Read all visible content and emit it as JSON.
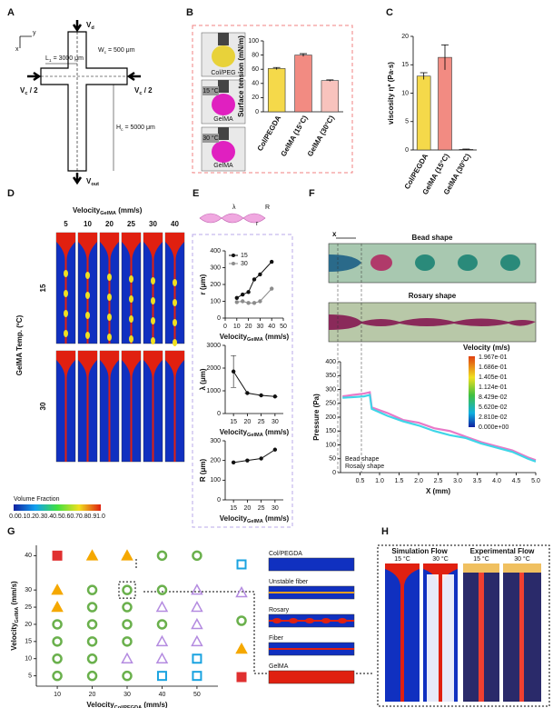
{
  "figure": {
    "panels": [
      "A",
      "B",
      "C",
      "D",
      "E",
      "F",
      "G",
      "H"
    ],
    "a": {
      "vd": [
        "V",
        "d"
      ],
      "vc_left": [
        "V",
        "c",
        " / 2"
      ],
      "vc_right": [
        "V",
        "c",
        " / 2"
      ],
      "wc": [
        "W",
        "c",
        " = 500 μm"
      ],
      "l1": [
        "L",
        "1",
        " = 3000 μm"
      ],
      "hc": [
        "H",
        "c",
        " = 5000 μm"
      ],
      "vout": [
        "V",
        "out"
      ],
      "x": "x",
      "y": "y"
    },
    "b": {
      "images": [
        "Col/PEG",
        "15 °C",
        "GelMA",
        "30 °C",
        "GelMA"
      ]
    },
    "d": {
      "title": [
        "Velocity",
        "GelMA",
        " (mm/s)"
      ],
      "columns": [
        "5",
        "10",
        "20",
        "25",
        "30",
        "40"
      ],
      "rows": [
        "15",
        "30"
      ],
      "row_title": "GelMA Temp. (ºC)",
      "colorbar_title": "Volume  Fraction",
      "colorbar_ticks": [
        "0.0",
        "0.1",
        "0.2",
        "0.3",
        "0.4",
        "0.5",
        "0.6",
        "0.7",
        "0.8",
        "0.9",
        "1.0"
      ]
    },
    "e": {
      "diagram": [
        "λ",
        "r",
        "R"
      ]
    },
    "f": {
      "x": "x",
      "bead": "Bead shape",
      "rosary": "Rosary shape",
      "colorbar_title": "Velocity  (m/s)",
      "colorbar_ticks": [
        "1.967e-01",
        "1.686e-01",
        "1.405e-01",
        "1.124e-01",
        "8.429e-02",
        "5.620e-02",
        "2.810e-02",
        "0.000e+00"
      ]
    },
    "h": {
      "simulation": "Simulation Flow",
      "experimental": "Experimental Flow",
      "temps": [
        "15 °C",
        "30 °C",
        "15 °C",
        "30 °C"
      ]
    }
  },
  "chart_data": [
    {
      "type": "bar",
      "y_label": "Surface tension (mN/m)",
      "categories": [
        "Col/PEGDA",
        "GelMA (15°C)",
        "GelMA (30°C)"
      ],
      "values": [
        61,
        80,
        44
      ],
      "errors": [
        1.5,
        2,
        1
      ],
      "colors": [
        "#f5d94a",
        "#f28b82",
        "#f8c3bd"
      ],
      "ylim": [
        0,
        100
      ],
      "yticks": [
        0,
        20,
        40,
        60,
        80,
        100
      ]
    },
    {
      "type": "bar",
      "y_label": "viscosity η* (Pa·s)",
      "categories": [
        "Col/PEGDA",
        "GelMA (15°C)",
        "GelMA (30°C)"
      ],
      "values": [
        13,
        16.3,
        0.1
      ],
      "errors": [
        0.6,
        2.2,
        0.05
      ],
      "colors": [
        "#f5d94a",
        "#f28b82",
        "#f8c3bd"
      ],
      "ylim": [
        0,
        20
      ],
      "yticks": [
        0,
        5,
        10,
        15,
        20
      ]
    },
    {
      "type": "line",
      "y_label": "r (μm)",
      "x_label": [
        "Velocity",
        "GelMA",
        " (mm/s)"
      ],
      "x": [
        10,
        15,
        20,
        25,
        30,
        40
      ],
      "series": [
        {
          "name": "15",
          "color": "#111111",
          "values": [
            120,
            140,
            155,
            230,
            260,
            335
          ]
        },
        {
          "name": "30",
          "color": "#8c8c8c",
          "values": [
            95,
            100,
            90,
            90,
            100,
            175
          ]
        }
      ],
      "xlim": [
        0,
        50
      ],
      "xticks": [
        0,
        10,
        20,
        30,
        40,
        50
      ],
      "ylim": [
        0,
        400
      ],
      "yticks": [
        0,
        100,
        200,
        300,
        400
      ],
      "legend": "upper left"
    },
    {
      "type": "line",
      "y_label": "λ (μm)",
      "x_label": [
        "Velocity",
        "GelMA",
        " (mm/s)"
      ],
      "x": [
        15,
        20,
        25,
        30
      ],
      "values": [
        1850,
        900,
        800,
        750
      ],
      "errors": [
        700,
        0,
        0,
        0
      ],
      "color": "#111111",
      "xlim": [
        12,
        33
      ],
      "xticks": [
        15,
        20,
        25,
        30
      ],
      "ylim": [
        0,
        3000
      ],
      "yticks": [
        0,
        1000,
        2000,
        3000
      ]
    },
    {
      "type": "line",
      "y_label": "R (μm)",
      "x_label": [
        "Velocity",
        "GelMA",
        " (mm/s)"
      ],
      "x": [
        15,
        20,
        25,
        30
      ],
      "values": [
        190,
        200,
        210,
        255
      ],
      "color": "#111111",
      "xlim": [
        12,
        33
      ],
      "xticks": [
        15,
        20,
        25,
        30
      ],
      "ylim": [
        0,
        300
      ],
      "yticks": [
        0,
        100,
        200,
        300
      ]
    },
    {
      "type": "line",
      "y_label": "Pressure (Pa)",
      "x_label": "X (mm)",
      "x": [
        0.05,
        0.3,
        0.6,
        0.75,
        0.8,
        1.2,
        1.6,
        2.0,
        2.4,
        2.8,
        3.2,
        3.6,
        4.0,
        4.4,
        4.8,
        5.0
      ],
      "series": [
        {
          "name": "Bead shape",
          "color": "#e879c8",
          "values": [
            275,
            280,
            285,
            290,
            235,
            215,
            190,
            180,
            160,
            150,
            130,
            110,
            95,
            80,
            55,
            45
          ]
        },
        {
          "name": "Rosary shape",
          "color": "#3fd6e8",
          "values": [
            270,
            272,
            275,
            280,
            230,
            205,
            185,
            170,
            150,
            135,
            125,
            105,
            90,
            75,
            50,
            40
          ]
        }
      ],
      "xlim": [
        0,
        5
      ],
      "xticks": [
        0.5,
        {
          "value": 1,
          "label": "1.0"
        },
        1.5,
        {
          "value": 2,
          "label": "2.0"
        },
        2.5,
        {
          "value": 3,
          "label": "3.0"
        },
        3.5,
        {
          "value": 4,
          "label": "4.0"
        },
        4.5,
        {
          "value": 5,
          "label": "5.0"
        }
      ],
      "ylim": [
        0,
        400
      ],
      "yticks": [
        0,
        50,
        100,
        150,
        200,
        250,
        300,
        350,
        400
      ],
      "legend": "lower left"
    },
    {
      "type": "scatter",
      "y_label": [
        "Velocity",
        "GelMA",
        " (mm/s)"
      ],
      "x_label": [
        "Velocity",
        "Col/PEGDA",
        " (mm/s)"
      ],
      "xlim": [
        4,
        56
      ],
      "xticks": [
        10,
        20,
        30,
        40,
        50
      ],
      "ylim": [
        2,
        43
      ],
      "yticks": [
        5,
        10,
        15,
        20,
        25,
        30,
        40
      ],
      "classes": [
        {
          "name": "Col/PEGDA",
          "marker": "square-open",
          "color": "#1aa3e0"
        },
        {
          "name": "Unstable fiber",
          "marker": "triangle-open",
          "color": "#b48be0"
        },
        {
          "name": "Rosary",
          "marker": "circle-open",
          "color": "#6ab04c"
        },
        {
          "name": "Fiber",
          "marker": "triangle",
          "color": "#f5a800"
        },
        {
          "name": "GelMA",
          "marker": "square",
          "color": "#e03030"
        }
      ],
      "points": [
        {
          "x": 10,
          "y": 40,
          "class": "GelMA"
        },
        {
          "x": 20,
          "y": 40,
          "class": "Fiber"
        },
        {
          "x": 30,
          "y": 40,
          "class": "Fiber"
        },
        {
          "x": 40,
          "y": 40,
          "class": "Rosary"
        },
        {
          "x": 50,
          "y": 40,
          "class": "Rosary"
        },
        {
          "x": 10,
          "y": 30,
          "class": "Fiber"
        },
        {
          "x": 20,
          "y": 30,
          "class": "Rosary"
        },
        {
          "x": 30,
          "y": 30,
          "class": "Rosary"
        },
        {
          "x": 40,
          "y": 30,
          "class": "Rosary"
        },
        {
          "x": 50,
          "y": 30,
          "class": "Unstable fiber"
        },
        {
          "x": 10,
          "y": 25,
          "class": "Fiber"
        },
        {
          "x": 20,
          "y": 25,
          "class": "Rosary"
        },
        {
          "x": 30,
          "y": 25,
          "class": "Rosary"
        },
        {
          "x": 40,
          "y": 25,
          "class": "Unstable fiber"
        },
        {
          "x": 50,
          "y": 25,
          "class": "Unstable fiber"
        },
        {
          "x": 10,
          "y": 20,
          "class": "Rosary"
        },
        {
          "x": 20,
          "y": 20,
          "class": "Rosary"
        },
        {
          "x": 30,
          "y": 20,
          "class": "Rosary"
        },
        {
          "x": 40,
          "y": 20,
          "class": "Rosary"
        },
        {
          "x": 50,
          "y": 20,
          "class": "Unstable fiber"
        },
        {
          "x": 10,
          "y": 15,
          "class": "Rosary"
        },
        {
          "x": 20,
          "y": 15,
          "class": "Rosary"
        },
        {
          "x": 30,
          "y": 15,
          "class": "Rosary"
        },
        {
          "x": 40,
          "y": 15,
          "class": "Unstable fiber"
        },
        {
          "x": 50,
          "y": 15,
          "class": "Unstable fiber"
        },
        {
          "x": 10,
          "y": 10,
          "class": "Rosary"
        },
        {
          "x": 20,
          "y": 10,
          "class": "Rosary"
        },
        {
          "x": 30,
          "y": 10,
          "class": "Unstable fiber"
        },
        {
          "x": 40,
          "y": 10,
          "class": "Unstable fiber"
        },
        {
          "x": 50,
          "y": 10,
          "class": "Col/PEGDA"
        },
        {
          "x": 10,
          "y": 5,
          "class": "Rosary"
        },
        {
          "x": 20,
          "y": 5,
          "class": "Rosary"
        },
        {
          "x": 30,
          "y": 5,
          "class": "Rosary"
        },
        {
          "x": 40,
          "y": 5,
          "class": "Col/PEGDA"
        },
        {
          "x": 50,
          "y": 5,
          "class": "Col/PEGDA"
        }
      ]
    }
  ]
}
